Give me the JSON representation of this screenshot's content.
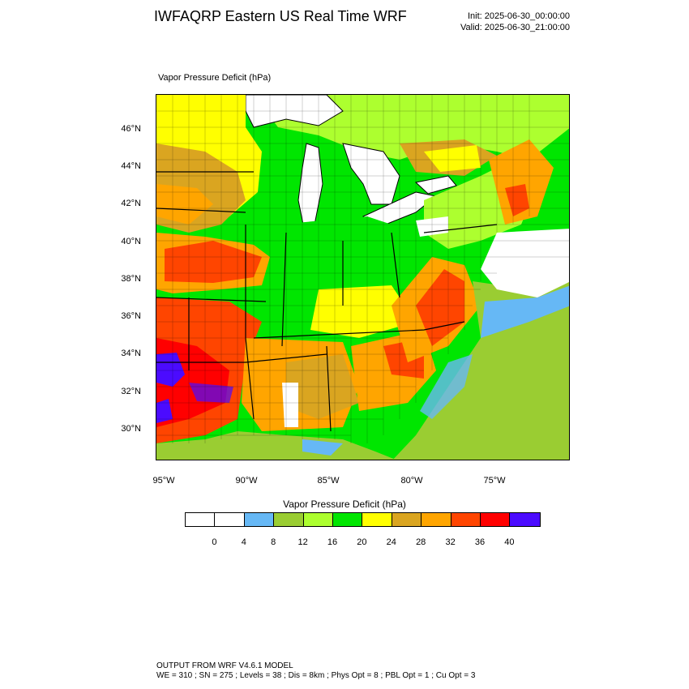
{
  "header": {
    "title": "IWFAQRP Eastern US Real Time WRF",
    "init": "Init: 2025-06-30_00:00:00",
    "valid": "Valid: 2025-06-30_21:00:00"
  },
  "map": {
    "field_label": "Vapor Pressure Deficit   (hPa)",
    "lat_labels": [
      "46°N",
      "44°N",
      "42°N",
      "40°N",
      "38°N",
      "36°N",
      "34°N",
      "32°N",
      "30°N"
    ],
    "lon_labels": [
      "95°W",
      "90°W",
      "85°W",
      "80°W",
      "75°W"
    ]
  },
  "legend": {
    "title": "Vapor Pressure Deficit  (hPa)",
    "colors": [
      "#ffffff",
      "#ffffff",
      "#66b8f5",
      "#9acd32",
      "#adff2f",
      "#00e600",
      "#ffff00",
      "#daa520",
      "#ffa500",
      "#ff4500",
      "#ff0000",
      "#4b0bff"
    ],
    "ticks": [
      "0",
      "4",
      "8",
      "12",
      "16",
      "20",
      "24",
      "28",
      "32",
      "36",
      "40"
    ]
  },
  "footer": {
    "line1": "OUTPUT FROM WRF V4.6.1 MODEL",
    "line2": "WE = 310 ; SN = 275 ; Levels = 38 ; Dis = 8km ; Phys Opt = 8 ; PBL Opt = 1 ; Cu Opt = 3"
  }
}
